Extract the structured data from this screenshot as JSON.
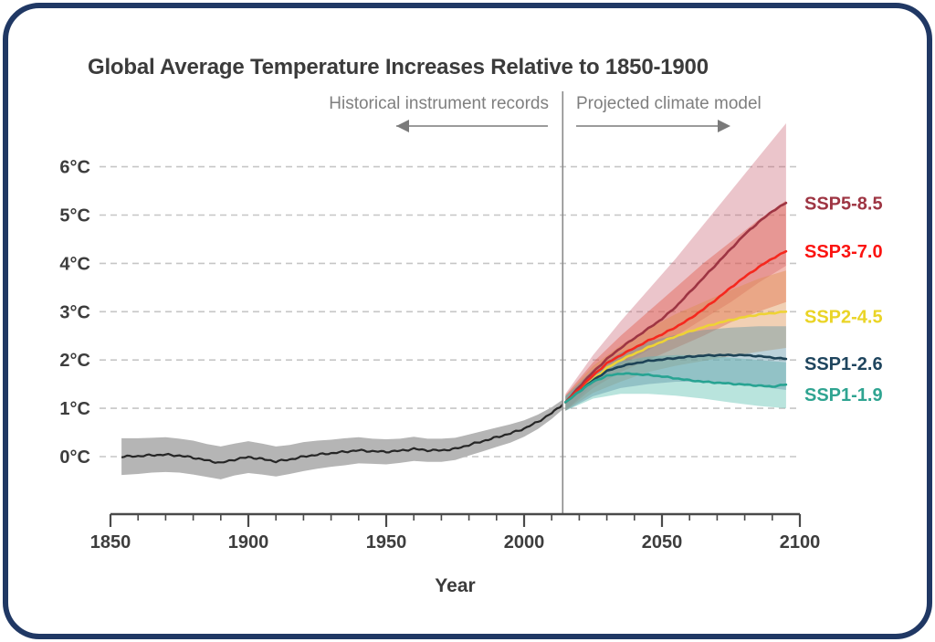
{
  "title": "Global Average Temperature Increases Relative to 1850-1900",
  "annotations": {
    "historical": "Historical instrument records",
    "projected": "Projected climate model"
  },
  "frame": {
    "border_color": "#203864",
    "background": "#ffffff"
  },
  "chart_data": {
    "type": "line",
    "title": "Global Average Temperature Increases Relative to 1850-1900",
    "xlabel": "Year",
    "ylabel": "",
    "xlim": [
      1850,
      2100
    ],
    "ylim": [
      -0.8,
      7.0
    ],
    "grid": "horizontal-dashed",
    "legend_position": "right-of-lines",
    "x_ticks_major": [
      1850,
      1900,
      1950,
      2000,
      2050,
      2100
    ],
    "x_tick_labels": [
      "1850",
      "1900",
      "1950",
      "2000",
      "2050",
      "2100"
    ],
    "x_tick_minor_step": 10,
    "y_gridlines": [
      {
        "t": 0,
        "label": "0°C"
      },
      {
        "t": 1,
        "label": "1°C"
      },
      {
        "t": 2,
        "label": "2°C"
      },
      {
        "t": 3,
        "label": "3°C"
      },
      {
        "t": 4,
        "label": "4°C"
      },
      {
        "t": 5,
        "label": "5°C"
      },
      {
        "t": 6,
        "label": "6°C"
      }
    ],
    "divider_year": 2014,
    "historical": {
      "name": "Historical instrument record",
      "line_color": "#262626",
      "band_color": "#b5b5b5",
      "years": [
        1854,
        1860,
        1865,
        1870,
        1875,
        1880,
        1885,
        1890,
        1895,
        1900,
        1905,
        1910,
        1915,
        1920,
        1925,
        1930,
        1935,
        1940,
        1945,
        1950,
        1955,
        1960,
        1965,
        1970,
        1975,
        1980,
        1985,
        1990,
        1995,
        2000,
        2005,
        2010,
        2014
      ],
      "values": [
        0.0,
        0.01,
        0.03,
        0.04,
        0.02,
        -0.02,
        -0.08,
        -0.13,
        -0.06,
        -0.01,
        -0.05,
        -0.1,
        -0.06,
        0.0,
        0.04,
        0.07,
        0.1,
        0.13,
        0.11,
        0.1,
        0.12,
        0.16,
        0.13,
        0.13,
        0.16,
        0.24,
        0.32,
        0.4,
        0.48,
        0.58,
        0.72,
        0.9,
        1.08
      ],
      "band_half_width": [
        0.38,
        0.37,
        0.36,
        0.36,
        0.35,
        0.35,
        0.34,
        0.34,
        0.33,
        0.33,
        0.32,
        0.31,
        0.3,
        0.3,
        0.29,
        0.28,
        0.28,
        0.27,
        0.26,
        0.26,
        0.25,
        0.25,
        0.24,
        0.24,
        0.23,
        0.22,
        0.21,
        0.2,
        0.19,
        0.17,
        0.15,
        0.12,
        0.1
      ]
    },
    "projection_years": [
      2015,
      2020,
      2025,
      2030,
      2035,
      2040,
      2045,
      2050,
      2055,
      2060,
      2065,
      2070,
      2075,
      2080,
      2085,
      2090,
      2095
    ],
    "band_years": [
      2015,
      2025,
      2035,
      2045,
      2055,
      2065,
      2075,
      2085,
      2095
    ],
    "band_draw_order": [
      "ssp585",
      "ssp370",
      "ssp245",
      "ssp119",
      "ssp126"
    ],
    "series": [
      {
        "id": "ssp585",
        "name": "SSP5-8.5",
        "label": "SSP5-8.5",
        "label_color": "#9e3543",
        "line_color": "#9e3543",
        "band_color": "#c75f6f",
        "band_opacity": 0.36,
        "label_t": 5.25,
        "values": [
          1.12,
          1.45,
          1.75,
          2.02,
          2.25,
          2.45,
          2.65,
          2.85,
          3.1,
          3.4,
          3.7,
          4.0,
          4.3,
          4.6,
          4.85,
          5.08,
          5.25
        ],
        "band_upper": [
          1.3,
          2.1,
          2.8,
          3.45,
          4.1,
          4.8,
          5.5,
          6.2,
          6.9
        ],
        "band_lower": [
          0.95,
          1.5,
          1.9,
          2.2,
          2.5,
          2.85,
          3.2,
          3.6,
          3.95
        ]
      },
      {
        "id": "ssp370",
        "name": "SSP3-7.0",
        "label": "SSP3-7.0",
        "label_color": "#fb1310",
        "line_color": "#f5281e",
        "band_color": "#e25948",
        "band_opacity": 0.42,
        "label_t": 4.25,
        "values": [
          1.12,
          1.4,
          1.68,
          1.93,
          2.1,
          2.25,
          2.4,
          2.53,
          2.68,
          2.85,
          3.05,
          3.27,
          3.5,
          3.72,
          3.92,
          4.1,
          4.25
        ],
        "band_upper": [
          1.27,
          1.95,
          2.5,
          3.0,
          3.5,
          4.0,
          4.45,
          4.9,
          5.3
        ],
        "band_lower": [
          0.95,
          1.42,
          1.75,
          2.0,
          2.25,
          2.5,
          2.78,
          3.0,
          3.2
        ]
      },
      {
        "id": "ssp245",
        "name": "SSP2-4.5",
        "label": "SSP2-4.5",
        "label_color": "#ead426",
        "line_color": "#eed335",
        "band_color": "#dd8f4d",
        "band_opacity": 0.42,
        "label_t": 2.9,
        "values": [
          1.12,
          1.35,
          1.6,
          1.83,
          2.0,
          2.13,
          2.26,
          2.38,
          2.49,
          2.59,
          2.68,
          2.76,
          2.83,
          2.89,
          2.94,
          2.97,
          3.0
        ],
        "band_upper": [
          1.25,
          1.88,
          2.3,
          2.65,
          2.95,
          3.2,
          3.45,
          3.68,
          3.85
        ],
        "band_lower": [
          0.95,
          1.32,
          1.55,
          1.75,
          1.88,
          1.98,
          2.08,
          2.17,
          2.25
        ]
      },
      {
        "id": "ssp126",
        "name": "SSP1-2.6",
        "label": "SSP1-2.6",
        "label_color": "#1f455e",
        "line_color": "#1d4356",
        "band_color": "#5e93a6",
        "band_opacity": 0.42,
        "label_t": 1.93,
        "values": [
          1.12,
          1.35,
          1.58,
          1.77,
          1.87,
          1.93,
          1.98,
          2.01,
          2.04,
          2.07,
          2.09,
          2.1,
          2.1,
          2.1,
          2.08,
          2.05,
          2.02
        ],
        "band_upper": [
          1.25,
          1.8,
          2.15,
          2.38,
          2.52,
          2.62,
          2.67,
          2.7,
          2.7
        ],
        "band_lower": [
          0.95,
          1.25,
          1.42,
          1.5,
          1.55,
          1.55,
          1.5,
          1.45,
          1.38
        ]
      },
      {
        "id": "ssp119",
        "name": "SSP1-1.9",
        "label": "SSP1-1.9",
        "label_color": "#2fa491",
        "line_color": "#27a392",
        "band_color": "#74cabb",
        "band_opacity": 0.5,
        "label_t": 1.29,
        "values": [
          1.12,
          1.35,
          1.55,
          1.67,
          1.72,
          1.71,
          1.69,
          1.66,
          1.62,
          1.58,
          1.55,
          1.53,
          1.51,
          1.49,
          1.47,
          1.45,
          1.49
        ],
        "band_upper": [
          1.25,
          1.72,
          1.97,
          2.07,
          2.1,
          2.1,
          2.05,
          2.0,
          1.95
        ],
        "band_lower": [
          0.95,
          1.2,
          1.3,
          1.3,
          1.26,
          1.2,
          1.12,
          1.05,
          1.0
        ]
      }
    ],
    "style_colors": {
      "grid": "#c6c6c6",
      "axis": "#4a4a4a",
      "tick_label": "#3d3d3d",
      "divider": "#8a8a8a",
      "arrow": "#7a7a7a"
    }
  }
}
